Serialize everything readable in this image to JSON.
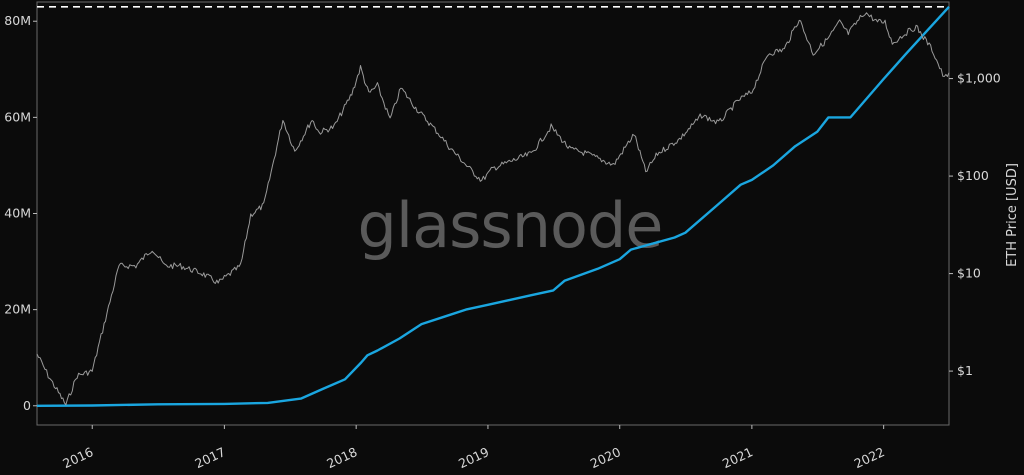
{
  "watermark": "glassnode",
  "chart_data": {
    "type": "line",
    "title": "",
    "xlabel": "",
    "ylabel_left": "",
    "ylabel_right": "ETH Price [USD]",
    "x_ticks": [
      "2016",
      "2017",
      "2018",
      "2019",
      "2020",
      "2021",
      "2022"
    ],
    "y_left_ticks": [
      {
        "value": 0,
        "label": "0"
      },
      {
        "value": 20000000,
        "label": "20M"
      },
      {
        "value": 40000000,
        "label": "40M"
      },
      {
        "value": 60000000,
        "label": "60M"
      },
      {
        "value": 80000000,
        "label": "80M"
      }
    ],
    "y_right_ticks": [
      {
        "value": 1,
        "label": "$1"
      },
      {
        "value": 10,
        "label": "$10"
      },
      {
        "value": 100,
        "label": "$100"
      },
      {
        "value": 1000,
        "label": "$1,000"
      }
    ],
    "x_range": [
      "2015-08-01",
      "2022-07-01"
    ],
    "y_left_range": [
      -4000000,
      84000000
    ],
    "y_right_range": [
      0.28,
      6100
    ],
    "y_right_scale": "log",
    "grid": false,
    "reference_line": {
      "axis": "left",
      "value": 83000000,
      "style": "dashed",
      "color": "#ffffff"
    },
    "series": [
      {
        "axis": "left",
        "color": "#1aa6e0",
        "points": [
          [
            "2015-08-01",
            0
          ],
          [
            "2016-01-01",
            50000
          ],
          [
            "2016-07-01",
            300000
          ],
          [
            "2017-01-01",
            400000
          ],
          [
            "2017-05-01",
            600000
          ],
          [
            "2017-08-01",
            1500000
          ],
          [
            "2017-10-01",
            3500000
          ],
          [
            "2017-12-01",
            5500000
          ],
          [
            "2018-01-15",
            9000000
          ],
          [
            "2018-02-01",
            10500000
          ],
          [
            "2018-03-01",
            11500000
          ],
          [
            "2018-05-01",
            14000000
          ],
          [
            "2018-07-01",
            17000000
          ],
          [
            "2018-09-01",
            18500000
          ],
          [
            "2018-11-01",
            20000000
          ],
          [
            "2019-01-01",
            21000000
          ],
          [
            "2019-05-01",
            23000000
          ],
          [
            "2019-07-01",
            24000000
          ],
          [
            "2019-08-01",
            26000000
          ],
          [
            "2019-11-01",
            28500000
          ],
          [
            "2020-01-01",
            30500000
          ],
          [
            "2020-02-01",
            32500000
          ],
          [
            "2020-06-01",
            35000000
          ],
          [
            "2020-07-01",
            36000000
          ],
          [
            "2020-10-01",
            42000000
          ],
          [
            "2020-12-01",
            46000000
          ],
          [
            "2021-01-01",
            47000000
          ],
          [
            "2021-03-01",
            50000000
          ],
          [
            "2021-05-01",
            54000000
          ],
          [
            "2021-07-01",
            57000000
          ],
          [
            "2021-08-01",
            60000000
          ],
          [
            "2021-10-01",
            60000000
          ],
          [
            "2022-01-01",
            68000000
          ],
          [
            "2022-03-01",
            73000000
          ],
          [
            "2022-05-01",
            78000000
          ],
          [
            "2022-07-01",
            83000000
          ]
        ]
      },
      {
        "axis": "right",
        "scale": "log",
        "color": "#9a9a9a",
        "points": [
          [
            "2015-08-01",
            1.5
          ],
          [
            "2015-09-01",
            0.9
          ],
          [
            "2015-10-20",
            0.45
          ],
          [
            "2015-11-20",
            0.9
          ],
          [
            "2016-01-01",
            1.0
          ],
          [
            "2016-02-15",
            4.5
          ],
          [
            "2016-03-15",
            12
          ],
          [
            "2016-05-01",
            12
          ],
          [
            "2016-06-15",
            18
          ],
          [
            "2016-07-20",
            12
          ],
          [
            "2016-09-01",
            12
          ],
          [
            "2016-11-01",
            10
          ],
          [
            "2016-12-15",
            8
          ],
          [
            "2017-01-01",
            9
          ],
          [
            "2017-02-15",
            12
          ],
          [
            "2017-03-15",
            40
          ],
          [
            "2017-04-20",
            50
          ],
          [
            "2017-06-12",
            380
          ],
          [
            "2017-07-15",
            180
          ],
          [
            "2017-09-01",
            380
          ],
          [
            "2017-09-20",
            280
          ],
          [
            "2017-11-01",
            320
          ],
          [
            "2017-12-20",
            700
          ],
          [
            "2018-01-13",
            1300
          ],
          [
            "2018-02-05",
            700
          ],
          [
            "2018-03-01",
            850
          ],
          [
            "2018-04-05",
            380
          ],
          [
            "2018-05-05",
            800
          ],
          [
            "2018-06-15",
            500
          ],
          [
            "2018-08-15",
            280
          ],
          [
            "2018-09-15",
            200
          ],
          [
            "2018-11-20",
            110
          ],
          [
            "2018-12-15",
            90
          ],
          [
            "2019-01-15",
            120
          ],
          [
            "2019-03-01",
            140
          ],
          [
            "2019-05-01",
            170
          ],
          [
            "2019-06-25",
            320
          ],
          [
            "2019-08-15",
            190
          ],
          [
            "2019-10-01",
            170
          ],
          [
            "2019-12-15",
            130
          ],
          [
            "2020-02-10",
            270
          ],
          [
            "2020-03-13",
            110
          ],
          [
            "2020-04-15",
            170
          ],
          [
            "2020-06-15",
            240
          ],
          [
            "2020-08-15",
            420
          ],
          [
            "2020-10-01",
            350
          ],
          [
            "2020-11-25",
            600
          ],
          [
            "2021-01-01",
            730
          ],
          [
            "2021-02-15",
            1800
          ],
          [
            "2021-04-01",
            2000
          ],
          [
            "2021-05-12",
            4100
          ],
          [
            "2021-06-20",
            1800
          ],
          [
            "2021-08-01",
            2600
          ],
          [
            "2021-09-01",
            3800
          ],
          [
            "2021-09-25",
            2900
          ],
          [
            "2021-11-10",
            4800
          ],
          [
            "2021-12-15",
            3800
          ],
          [
            "2022-01-05",
            3800
          ],
          [
            "2022-01-25",
            2300
          ],
          [
            "2022-03-01",
            2900
          ],
          [
            "2022-04-01",
            3400
          ],
          [
            "2022-05-15",
            2000
          ],
          [
            "2022-06-18",
            1000
          ],
          [
            "2022-07-01",
            1150
          ]
        ]
      }
    ]
  }
}
